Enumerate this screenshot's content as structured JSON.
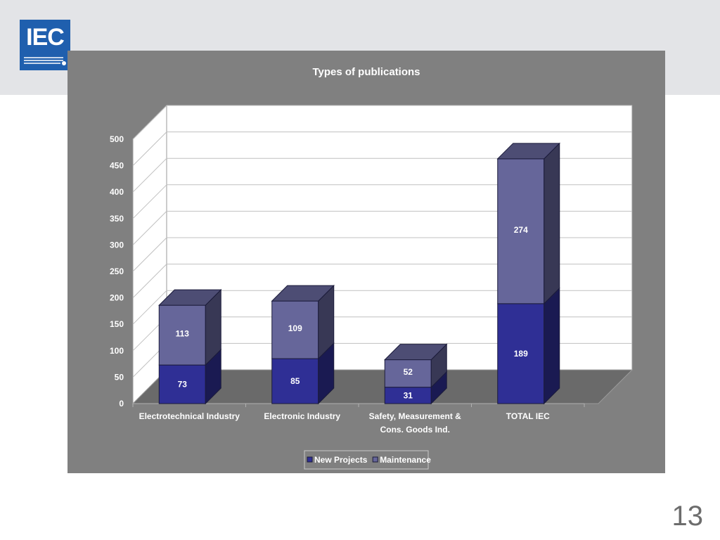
{
  "logo": {
    "text": "IEC"
  },
  "page_number": "13",
  "colors": {
    "background_band": "#e3e4e7",
    "panel": "#808080",
    "new_projects": "#2f2f95",
    "maintenance": "#66669a"
  },
  "chart_data": {
    "type": "bar",
    "stacked": true,
    "three_d": true,
    "title": "Types of publications",
    "categories": [
      [
        "Electrotechnical Industry"
      ],
      [
        "Electronic Industry"
      ],
      [
        "Safety, Measurement &",
        "Cons. Goods Ind."
      ],
      [
        "TOTAL IEC"
      ]
    ],
    "series": [
      {
        "name": "New Projects",
        "values": [
          73,
          85,
          31,
          189
        ],
        "color": "#2f2f95"
      },
      {
        "name": "Maintenance",
        "values": [
          113,
          109,
          52,
          274
        ],
        "color": "#66669a"
      }
    ],
    "ylim": [
      0,
      500
    ],
    "yticks": [
      0,
      50,
      100,
      150,
      200,
      250,
      300,
      350,
      400,
      450,
      500
    ],
    "grid": true,
    "legend_position": "bottom"
  }
}
